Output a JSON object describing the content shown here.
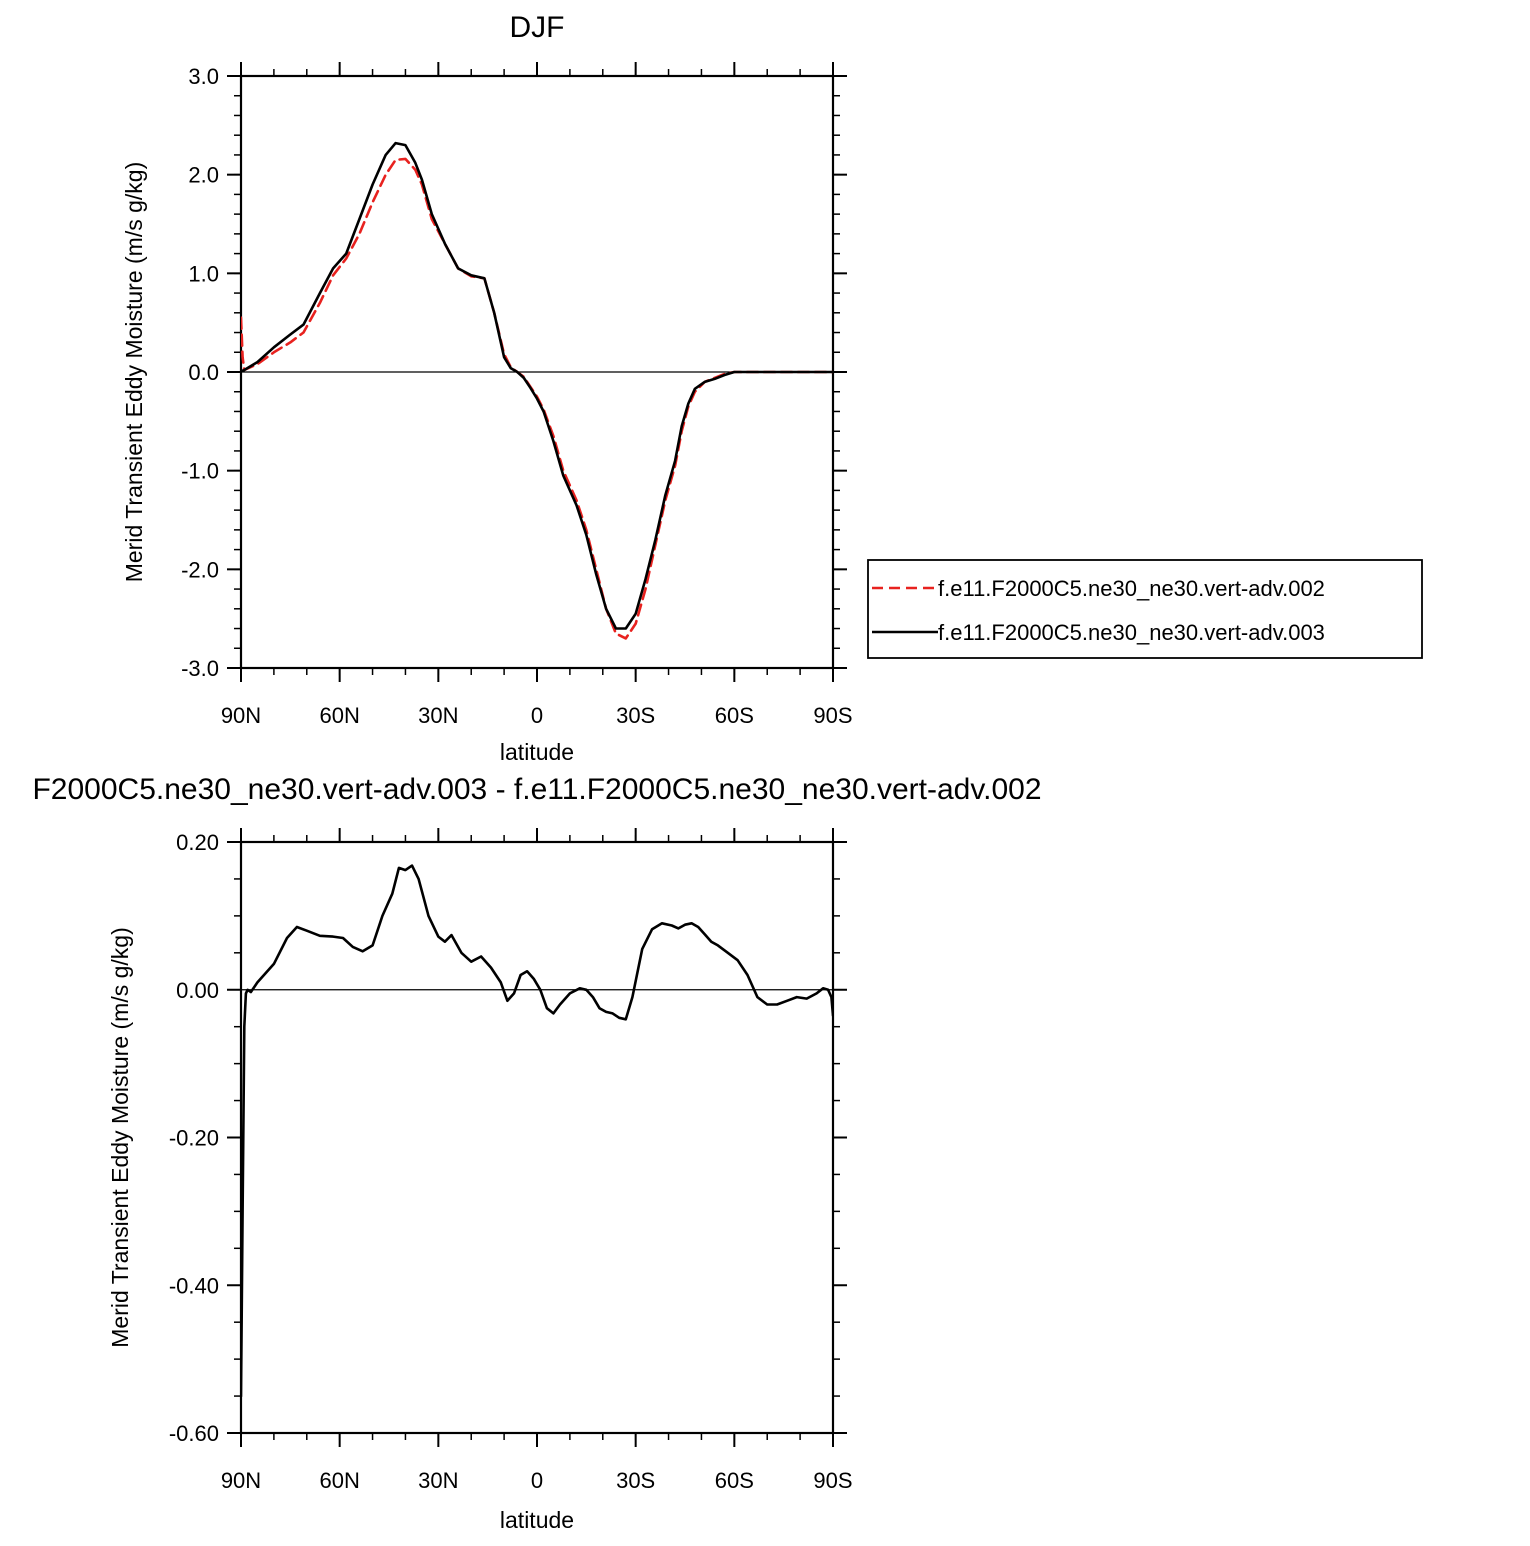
{
  "chart_data": [
    {
      "type": "line",
      "title": "DJF",
      "xlabel": "latitude",
      "ylabel": "Merid Transient Eddy Moisture (m/s g/kg)",
      "xlim": [
        90,
        -90
      ],
      "ylim": [
        -3.0,
        3.0
      ],
      "x_ticks": [
        90,
        60,
        30,
        0,
        -30,
        -60,
        -90
      ],
      "x_tick_labels": [
        "90N",
        "60N",
        "30N",
        "0",
        "30S",
        "60S",
        "90S"
      ],
      "y_ticks": [
        -3,
        -2,
        -1,
        0,
        1,
        2,
        3
      ],
      "y_tick_labels": [
        "-3.0",
        "-2.0",
        "-1.0",
        "0.0",
        "1.0",
        "2.0",
        "3.0"
      ],
      "grid": false,
      "legend_position": "right",
      "series": [
        {
          "name": "f.e11.F2000C5.ne30_ne30.vert-adv.002",
          "color": "#e8221f",
          "dash": "dashed",
          "x": [
            90,
            89.5,
            89,
            85,
            80,
            75,
            71,
            66,
            62,
            58,
            54,
            50,
            46,
            43,
            40,
            37,
            35,
            32,
            28,
            24,
            20,
            16,
            13,
            10,
            8,
            6,
            4,
            2,
            0,
            -2,
            -5,
            -8,
            -12,
            -15,
            -18,
            -21,
            -24,
            -27,
            -30,
            -33,
            -36,
            -39,
            -42,
            -44,
            -46,
            -48,
            -51,
            -54,
            -57,
            -60,
            -63,
            -66,
            -70,
            -74,
            -78,
            -82,
            -85,
            -88,
            -90
          ],
          "y": [
            0.55,
            0.15,
            0.02,
            0.08,
            0.2,
            0.3,
            0.4,
            0.7,
            0.98,
            1.15,
            1.4,
            1.72,
            2.0,
            2.15,
            2.16,
            2.05,
            1.9,
            1.55,
            1.3,
            1.05,
            0.97,
            0.95,
            0.6,
            0.18,
            0.05,
            0.0,
            -0.05,
            -0.15,
            -0.25,
            -0.38,
            -0.65,
            -1.0,
            -1.3,
            -1.6,
            -2.0,
            -2.4,
            -2.65,
            -2.7,
            -2.55,
            -2.2,
            -1.75,
            -1.3,
            -0.95,
            -0.6,
            -0.35,
            -0.2,
            -0.1,
            -0.06,
            -0.02,
            0.0,
            0.0,
            0.0,
            0.0,
            0.0,
            0.0,
            0.0,
            0.0,
            0.0,
            0.0
          ]
        },
        {
          "name": "f.e11.F2000C5.ne30_ne30.vert-adv.003",
          "color": "#000000",
          "dash": "solid",
          "x": [
            90,
            89.5,
            89,
            85,
            80,
            75,
            71,
            66,
            62,
            58,
            54,
            50,
            46,
            43,
            40,
            37,
            35,
            32,
            28,
            24,
            20,
            16,
            13,
            10,
            8,
            6,
            4,
            2,
            0,
            -2,
            -5,
            -8,
            -12,
            -15,
            -18,
            -21,
            -24,
            -27,
            -30,
            -33,
            -36,
            -39,
            -42,
            -44,
            -46,
            -48,
            -51,
            -54,
            -57,
            -60,
            -63,
            -66,
            -70,
            -74,
            -78,
            -82,
            -85,
            -88,
            -90
          ],
          "y": [
            0.02,
            0.01,
            0.02,
            0.1,
            0.25,
            0.38,
            0.48,
            0.8,
            1.05,
            1.2,
            1.55,
            1.9,
            2.2,
            2.32,
            2.3,
            2.12,
            1.95,
            1.6,
            1.3,
            1.05,
            0.98,
            0.95,
            0.6,
            0.15,
            0.04,
            0.0,
            -0.06,
            -0.16,
            -0.27,
            -0.4,
            -0.7,
            -1.05,
            -1.35,
            -1.65,
            -2.05,
            -2.4,
            -2.6,
            -2.6,
            -2.45,
            -2.1,
            -1.7,
            -1.25,
            -0.9,
            -0.55,
            -0.32,
            -0.17,
            -0.1,
            -0.07,
            -0.03,
            0.0,
            0.0,
            0.0,
            0.0,
            0.0,
            0.0,
            0.0,
            0.0,
            0.0,
            0.0
          ]
        }
      ]
    },
    {
      "type": "line",
      "title": "F2000C5.ne30_ne30.vert-adv.003 - f.e11.F2000C5.ne30_ne30.vert-adv.002",
      "xlabel": "latitude",
      "ylabel": "Merid Transient Eddy Moisture (m/s g/kg)",
      "xlim": [
        90,
        -90
      ],
      "ylim": [
        -0.6,
        0.2
      ],
      "x_ticks": [
        90,
        60,
        30,
        0,
        -30,
        -60,
        -90
      ],
      "x_tick_labels": [
        "90N",
        "60N",
        "30N",
        "0",
        "30S",
        "60S",
        "90S"
      ],
      "y_ticks": [
        -0.6,
        -0.4,
        -0.2,
        0.0,
        0.2
      ],
      "y_tick_labels": [
        "-0.60",
        "-0.40",
        "-0.20",
        "0.00",
        "0.20"
      ],
      "grid": false,
      "series": [
        {
          "color": "#000000",
          "dash": "solid",
          "x": [
            90,
            89.5,
            89,
            88.5,
            88,
            87,
            85,
            80,
            76,
            73,
            70,
            66,
            62,
            59,
            56,
            53,
            50,
            47,
            44,
            42,
            40,
            38,
            36,
            33,
            30,
            28,
            26,
            23,
            20,
            17,
            14,
            11,
            9,
            7,
            5,
            3,
            1,
            -1,
            -3,
            -5,
            -7,
            -10,
            -13,
            -15,
            -17,
            -19,
            -21,
            -23,
            -25,
            -27,
            -29,
            -32,
            -35,
            -38,
            -41,
            -43,
            -45,
            -47,
            -49,
            -51,
            -53,
            -55,
            -58,
            -61,
            -64,
            -67,
            -70,
            -73,
            -76,
            -79,
            -82,
            -85,
            -87,
            -88.5,
            -89.5,
            -90
          ],
          "y": [
            -0.55,
            -0.3,
            -0.05,
            -0.005,
            0.0,
            -0.003,
            0.01,
            0.035,
            0.07,
            0.085,
            0.08,
            0.073,
            0.072,
            0.07,
            0.058,
            0.052,
            0.06,
            0.1,
            0.13,
            0.165,
            0.162,
            0.168,
            0.15,
            0.1,
            0.072,
            0.065,
            0.074,
            0.05,
            0.038,
            0.045,
            0.03,
            0.01,
            -0.015,
            -0.005,
            0.02,
            0.025,
            0.015,
            0.0,
            -0.025,
            -0.032,
            -0.02,
            -0.005,
            0.002,
            0.0,
            -0.01,
            -0.025,
            -0.03,
            -0.032,
            -0.038,
            -0.04,
            -0.01,
            0.055,
            0.082,
            0.09,
            0.087,
            0.083,
            0.088,
            0.09,
            0.085,
            0.075,
            0.065,
            0.06,
            0.05,
            0.04,
            0.02,
            -0.01,
            -0.02,
            -0.02,
            -0.015,
            -0.01,
            -0.012,
            -0.005,
            0.002,
            0.0,
            -0.01,
            -0.035
          ]
        }
      ]
    }
  ]
}
